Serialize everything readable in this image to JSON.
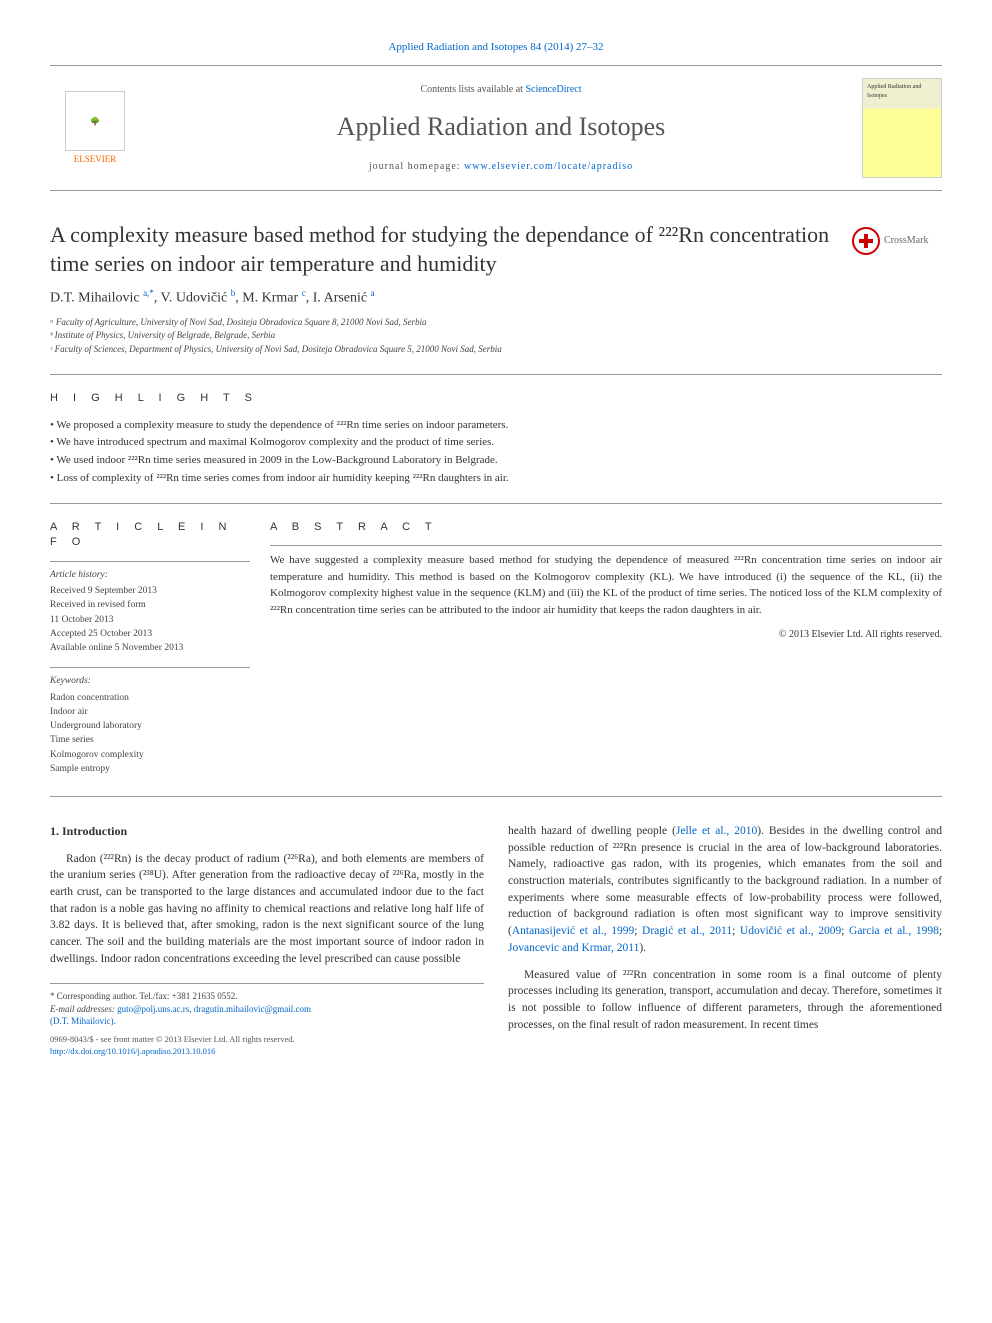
{
  "citation": "Applied Radiation and Isotopes 84 (2014) 27–32",
  "header": {
    "contents_prefix": "Contents lists available at ",
    "contents_link": "ScienceDirect",
    "journal": "Applied Radiation and Isotopes",
    "homepage_prefix": "journal homepage: ",
    "homepage_link": "www.elsevier.com/locate/apradiso",
    "publisher": "ELSEVIER",
    "cover_text": "Applied Radiation and Isotopes"
  },
  "crossmark": "CrossMark",
  "title": "A complexity measure based method for studying the dependance of ²²²Rn concentration time series on indoor air temperature and humidity",
  "authors_html": "D.T. Mihailovic <sup>a,*</sup>, V. Udovičić <sup>b</sup>, M. Krmar <sup>c</sup>, I. Arsenić <sup>a</sup>",
  "affiliations": [
    "ᵃ Faculty of Agriculture, University of Novi Sad, Dositeja Obradovica Square 8, 21000 Novi Sad, Serbia",
    "ᵇ Institute of Physics, University of Belgrade, Belgrade, Serbia",
    "ᶜ Faculty of Sciences, Department of Physics, University of Novi Sad, Dositeja Obradovica Square 5, 21000 Novi Sad, Serbia"
  ],
  "highlights": {
    "heading": "H I G H L I G H T S",
    "items": [
      "• We proposed a complexity measure to study the dependence of ²²²Rn time series on indoor parameters.",
      "• We have introduced spectrum and maximal Kolmogorov complexity and the product of time series.",
      "• We used indoor ²²²Rn time series measured in 2009 in the Low-Background Laboratory in Belgrade.",
      "• Loss of complexity of ²²²Rn time series comes from indoor air humidity keeping ²²²Rn daughters in air."
    ]
  },
  "article_info": {
    "heading": "A R T I C L E  I N F O",
    "history_label": "Article history:",
    "history": [
      "Received 9 September 2013",
      "Received in revised form",
      "11 October 2013",
      "Accepted 25 October 2013",
      "Available online 5 November 2013"
    ],
    "keywords_label": "Keywords:",
    "keywords": [
      "Radon concentration",
      "Indoor air",
      "Underground laboratory",
      "Time series",
      "Kolmogorov complexity",
      "Sample entropy"
    ]
  },
  "abstract": {
    "heading": "A B S T R A C T",
    "text": "We have suggested a complexity measure based method for studying the dependence of measured ²²²Rn concentration time series on indoor air temperature and humidity. This method is based on the Kolmogorov complexity (KL). We have introduced (i) the sequence of the KL, (ii) the Kolmogorov complexity highest value in the sequence (KLM) and (iii) the KL of the product of time series. The noticed loss of the KLM complexity of ²²²Rn concentration time series can be attributed to the indoor air humidity that keeps the radon daughters in air.",
    "copyright": "© 2013 Elsevier Ltd. All rights reserved."
  },
  "intro": {
    "heading": "1.  Introduction",
    "para1": "Radon (²²²Rn) is the decay product of radium (²²⁶Ra), and both elements are members of the uranium series (²³⁸U). After generation from the radioactive decay of ²²⁶Ra, mostly in the earth crust, can be transported to the large distances and accumulated indoor due to the fact that radon is a noble gas having no affinity to chemical reactions and relative long half life of 3.82 days. It is believed that, after smoking, radon is the next significant source of the lung cancer. The soil and the building materials are the most important source of indoor radon in dwellings. Indoor radon concentrations exceeding the level prescribed can cause possible",
    "para2_pre": "health hazard of dwelling people (",
    "para2_link1": "Jelle et al., 2010",
    "para2_mid1": "). Besides in the dwelling control and possible reduction of ²²²Rn presence is crucial in the area of low-background laboratories. Namely, radioactive gas radon, with its progenies, which emanates from the soil and construction materials, contributes significantly to the background radiation. In a number of experiments where some measurable effects of low-probability process were followed, reduction of background radiation is often most significant way to improve sensitivity (",
    "para2_link2": "Antanasijević et al., 1999",
    "para2_sep1": "; ",
    "para2_link3": "Dragić et al., 2011",
    "para2_sep2": "; ",
    "para2_link4": "Udovičić et al., 2009",
    "para2_sep3": "; ",
    "para2_link5": "Garcia et al., 1998",
    "para2_sep4": "; ",
    "para2_link6": "Jovancevic and Krmar, 2011",
    "para2_post": ").",
    "para3": "Measured value of ²²²Rn concentration in some room is a final outcome of plenty processes including its generation, transport, accumulation and decay. Therefore, sometimes it is not possible to follow influence of different parameters, through the aforementioned processes, on the final result of radon measurement. In recent times"
  },
  "footnotes": {
    "corr": "* Corresponding author. Tel./fax: +381 21635 0552.",
    "email_label": "E-mail addresses: ",
    "email1": "guto@polj.uns.ac.rs",
    "email_sep": ", ",
    "email2": "dragutin.mihailovic@gmail.com",
    "email_author": "(D.T. Mihailovic)."
  },
  "bottom": {
    "issn": "0969-8043/$ - see front matter © 2013 Elsevier Ltd. All rights reserved.",
    "doi": "http://dx.doi.org/10.1016/j.apradiso.2013.10.016"
  },
  "colors": {
    "link": "#0066cc",
    "text": "#333333",
    "rule": "#999999",
    "elsevier": "#ff6600"
  }
}
